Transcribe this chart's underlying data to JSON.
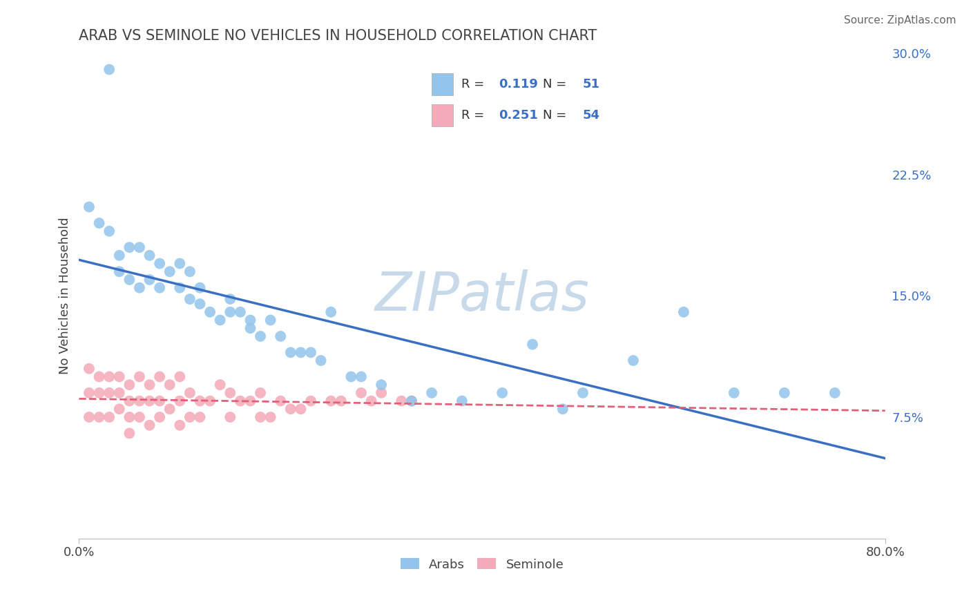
{
  "title": "ARAB VS SEMINOLE NO VEHICLES IN HOUSEHOLD CORRELATION CHART",
  "source": "Source: ZipAtlas.com",
  "ylabel": "No Vehicles in Household",
  "xlim": [
    0.0,
    0.8
  ],
  "ylim": [
    0.0,
    0.3
  ],
  "xtick_vals": [
    0.0,
    0.8
  ],
  "xtick_labels": [
    "0.0%",
    "80.0%"
  ],
  "ytick_positions": [
    0.075,
    0.15,
    0.225,
    0.3
  ],
  "ytick_labels": [
    "7.5%",
    "15.0%",
    "22.5%",
    "30.0%"
  ],
  "legend_labels": [
    "Arabs",
    "Seminole"
  ],
  "arab_R": "0.119",
  "arab_N": "51",
  "seminole_R": "0.251",
  "seminole_N": "54",
  "arab_color": "#92c5eb",
  "seminole_color": "#f4aab8",
  "arab_line_color": "#3a6fc4",
  "seminole_line_color": "#e0607a",
  "watermark_color": "#c8daea",
  "background_color": "#ffffff",
  "grid_color": "#d0d8e8",
  "arab_x": [
    0.03,
    0.01,
    0.02,
    0.03,
    0.04,
    0.04,
    0.05,
    0.05,
    0.06,
    0.06,
    0.07,
    0.07,
    0.08,
    0.08,
    0.09,
    0.1,
    0.1,
    0.11,
    0.11,
    0.12,
    0.12,
    0.13,
    0.14,
    0.15,
    0.15,
    0.16,
    0.17,
    0.17,
    0.18,
    0.19,
    0.2,
    0.21,
    0.22,
    0.23,
    0.24,
    0.25,
    0.27,
    0.28,
    0.3,
    0.33,
    0.35,
    0.38,
    0.42,
    0.45,
    0.48,
    0.5,
    0.55,
    0.6,
    0.65,
    0.7,
    0.75
  ],
  "arab_y": [
    0.29,
    0.205,
    0.195,
    0.19,
    0.175,
    0.165,
    0.18,
    0.16,
    0.18,
    0.155,
    0.175,
    0.16,
    0.17,
    0.155,
    0.165,
    0.17,
    0.155,
    0.165,
    0.148,
    0.155,
    0.145,
    0.14,
    0.135,
    0.148,
    0.14,
    0.14,
    0.135,
    0.13,
    0.125,
    0.135,
    0.125,
    0.115,
    0.115,
    0.115,
    0.11,
    0.14,
    0.1,
    0.1,
    0.095,
    0.085,
    0.09,
    0.085,
    0.09,
    0.12,
    0.08,
    0.09,
    0.11,
    0.14,
    0.09,
    0.09,
    0.09
  ],
  "seminole_x": [
    0.01,
    0.01,
    0.01,
    0.02,
    0.02,
    0.02,
    0.03,
    0.03,
    0.03,
    0.04,
    0.04,
    0.04,
    0.05,
    0.05,
    0.05,
    0.05,
    0.06,
    0.06,
    0.06,
    0.07,
    0.07,
    0.07,
    0.08,
    0.08,
    0.08,
    0.09,
    0.09,
    0.1,
    0.1,
    0.1,
    0.11,
    0.11,
    0.12,
    0.12,
    0.13,
    0.14,
    0.15,
    0.15,
    0.16,
    0.17,
    0.18,
    0.18,
    0.19,
    0.2,
    0.21,
    0.22,
    0.23,
    0.25,
    0.26,
    0.28,
    0.29,
    0.3,
    0.32,
    0.33
  ],
  "seminole_y": [
    0.105,
    0.09,
    0.075,
    0.1,
    0.09,
    0.075,
    0.1,
    0.09,
    0.075,
    0.1,
    0.09,
    0.08,
    0.095,
    0.085,
    0.075,
    0.065,
    0.1,
    0.085,
    0.075,
    0.095,
    0.085,
    0.07,
    0.1,
    0.085,
    0.075,
    0.095,
    0.08,
    0.1,
    0.085,
    0.07,
    0.09,
    0.075,
    0.085,
    0.075,
    0.085,
    0.095,
    0.09,
    0.075,
    0.085,
    0.085,
    0.09,
    0.075,
    0.075,
    0.085,
    0.08,
    0.08,
    0.085,
    0.085,
    0.085,
    0.09,
    0.085,
    0.09,
    0.085,
    0.085
  ]
}
